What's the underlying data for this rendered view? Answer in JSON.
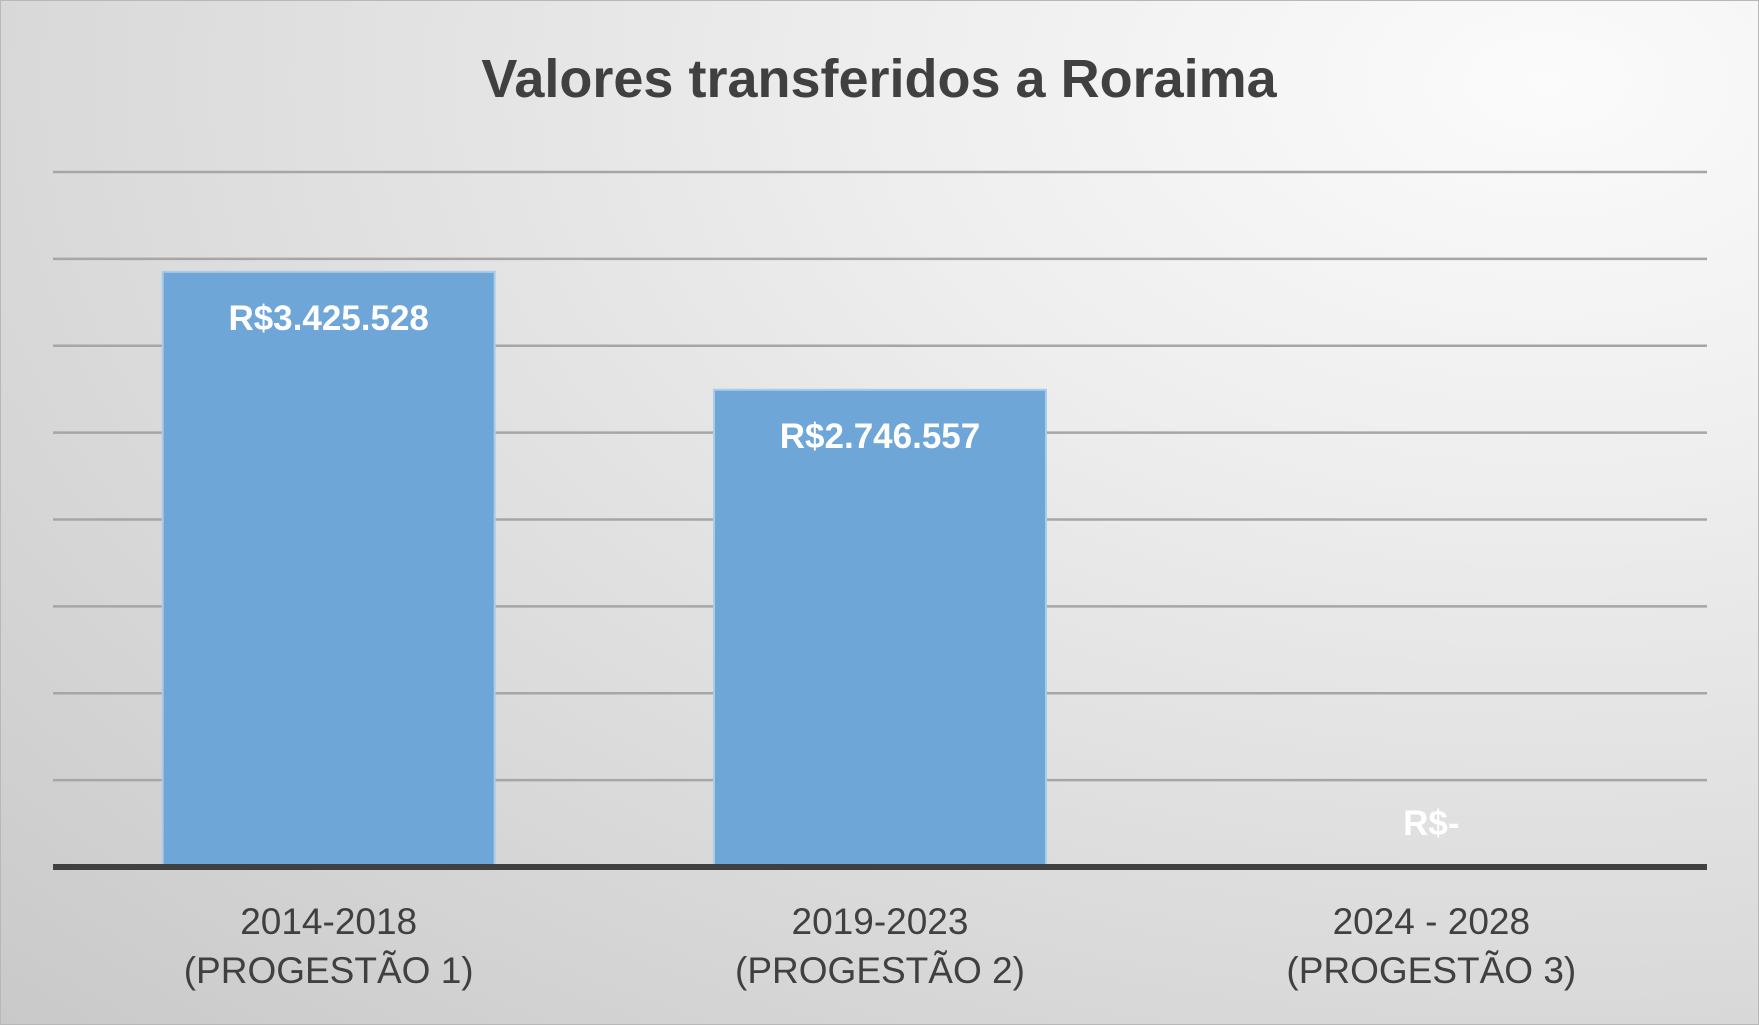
{
  "chart_data": {
    "type": "bar",
    "title": "Valores transferidos a Roraima",
    "xlabel": "",
    "ylabel": "",
    "categories": [
      [
        "2014-2018",
        "(PROGESTÃO 1)"
      ],
      [
        "2019-2023",
        "(PROGESTÃO 2)"
      ],
      [
        "2024 - 2028",
        "(PROGESTÃO 3)"
      ]
    ],
    "values": [
      3425528,
      2746557,
      0
    ],
    "data_labels": [
      "R$3.425.528",
      "R$2.746.557",
      "R$-"
    ],
    "ylim": [
      0,
      4000000
    ],
    "grid": true,
    "gridline_step": 500000,
    "legend": "none",
    "colors": {
      "bar_fill": "#6fa6d8",
      "bar_edge": "#a9ccec",
      "gridline": "#a6a6a6",
      "axis": "#404040",
      "text": "#404040",
      "data_label": "#ffffff"
    }
  }
}
